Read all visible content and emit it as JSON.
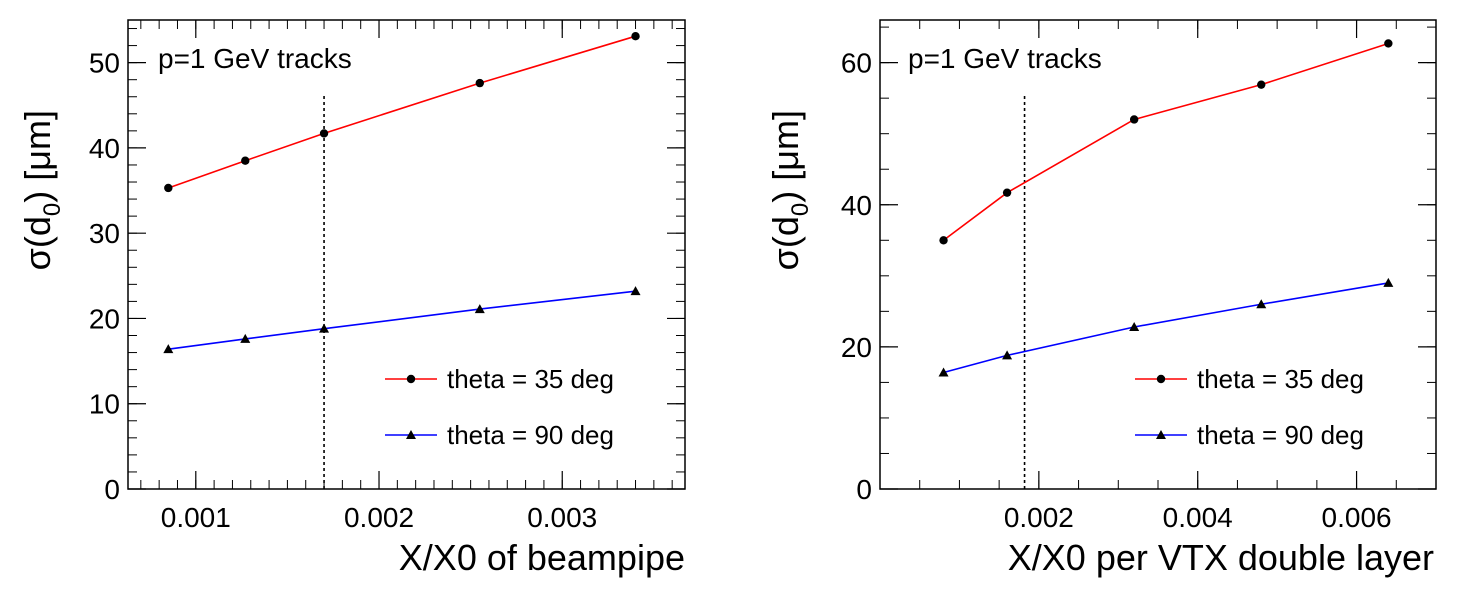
{
  "chart_data": [
    {
      "type": "line",
      "annotation": "p=1 GeV tracks",
      "xlabel": "X/X0 of beampipe",
      "ylabel_main": "σ(d",
      "ylabel_sub": "0",
      "ylabel_tail": ") [μm]",
      "xlim": [
        0.00063,
        0.00367
      ],
      "ylim": [
        0,
        55
      ],
      "x_ticks": [
        0.001,
        0.002,
        0.003
      ],
      "x_tick_labels": [
        "0.001",
        "0.002",
        "0.003"
      ],
      "y_ticks": [
        0,
        10,
        20,
        30,
        40,
        50
      ],
      "y_tick_labels": [
        "0",
        "10",
        "20",
        "30",
        "40",
        "50"
      ],
      "x_minor_step": 0.0001,
      "y_minor_step": 2,
      "vertical_reference_line": 0.0017,
      "legend_position": "bottom-right",
      "grid": false,
      "series": [
        {
          "name": "theta = 35 deg",
          "color": "#ff0000",
          "marker": "circle",
          "x": [
            0.00085,
            0.00127,
            0.0017,
            0.00255,
            0.0034
          ],
          "y": [
            35.3,
            38.5,
            41.7,
            47.6,
            53.1
          ]
        },
        {
          "name": "theta = 90 deg",
          "color": "#0000ff",
          "marker": "triangle",
          "x": [
            0.00085,
            0.00127,
            0.0017,
            0.00255,
            0.0034
          ],
          "y": [
            16.4,
            17.6,
            18.8,
            21.1,
            23.2
          ]
        }
      ]
    },
    {
      "type": "line",
      "annotation": "p=1 GeV tracks",
      "xlabel": "X/X0 per VTX double layer",
      "ylabel_main": "σ(d",
      "ylabel_sub": "0",
      "ylabel_tail": ") [μm]",
      "xlim": [
        0,
        0.007
      ],
      "ylim": [
        0,
        66
      ],
      "x_ticks": [
        0.002,
        0.004,
        0.006
      ],
      "x_tick_labels": [
        "0.002",
        "0.004",
        "0.006"
      ],
      "y_ticks": [
        0,
        20,
        40,
        60
      ],
      "y_tick_labels": [
        "0",
        "20",
        "40",
        "60"
      ],
      "x_minor_step": 0.0005,
      "y_minor_step": 5,
      "vertical_reference_line": 0.00182,
      "legend_position": "bottom-right",
      "grid": false,
      "series": [
        {
          "name": "theta = 35 deg",
          "color": "#ff0000",
          "marker": "circle",
          "x": [
            0.0008,
            0.0016,
            0.0032,
            0.0048,
            0.0064
          ],
          "y": [
            35.0,
            41.7,
            52.0,
            56.9,
            62.7
          ]
        },
        {
          "name": "theta = 90 deg",
          "color": "#0000ff",
          "marker": "triangle",
          "x": [
            0.0008,
            0.0016,
            0.0032,
            0.0048,
            0.0064
          ],
          "y": [
            16.4,
            18.8,
            22.8,
            26.0,
            29.0
          ]
        }
      ]
    }
  ]
}
